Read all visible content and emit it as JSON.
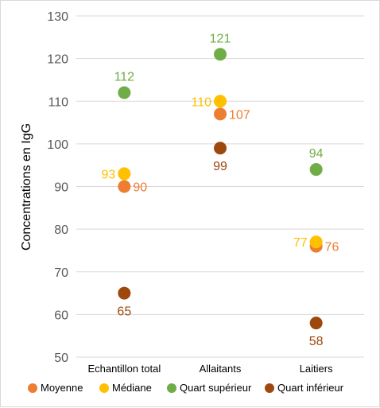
{
  "chart_data": {
    "type": "scatter",
    "ylabel": "Concentrations en IgG",
    "ylim": [
      50,
      130
    ],
    "yticks": [
      50,
      60,
      70,
      80,
      90,
      100,
      110,
      120,
      130
    ],
    "grid": true,
    "legend_position": "bottom",
    "categories": [
      "Echantillon total",
      "Allaitants",
      "Laitiers"
    ],
    "series": [
      {
        "name": "Moyenne",
        "color": "#ED7D31",
        "values": [
          90,
          107,
          76
        ]
      },
      {
        "name": "Médiane",
        "color": "#FFC000",
        "values": [
          93,
          110,
          77
        ]
      },
      {
        "name": "Quart supérieur",
        "color": "#70AD47",
        "values": [
          112,
          121,
          94
        ]
      },
      {
        "name": "Quart inférieur",
        "color": "#9E480E",
        "values": [
          65,
          99,
          58
        ]
      }
    ]
  }
}
